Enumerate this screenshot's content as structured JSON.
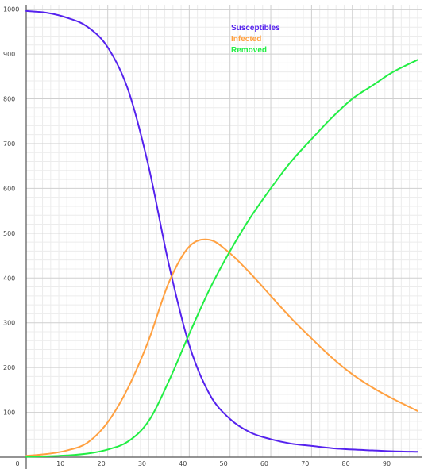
{
  "chart_data": {
    "type": "line",
    "title": "",
    "xlabel": "",
    "ylabel": "",
    "xlim": [
      0,
      97
    ],
    "ylim": [
      0,
      1010
    ],
    "x_ticks": [
      0,
      10,
      20,
      30,
      40,
      50,
      60,
      70,
      80,
      90
    ],
    "y_ticks": [
      0,
      100,
      200,
      300,
      400,
      500,
      600,
      700,
      800,
      900,
      1000
    ],
    "x_tick_labels": [
      "0",
      "10",
      "20",
      "30",
      "40",
      "50",
      "60",
      "70",
      "80",
      "90"
    ],
    "y_tick_labels": [
      "0",
      "100",
      "200",
      "300",
      "400",
      "500",
      "600",
      "700",
      "800",
      "900",
      "1000"
    ],
    "grid": true,
    "legend_position": "top-center",
    "x": [
      0,
      5,
      10,
      15,
      20,
      25,
      30,
      35,
      40,
      45,
      50,
      55,
      60,
      65,
      70,
      75,
      80,
      85,
      90,
      96
    ],
    "series": [
      {
        "name": "Susceptibles",
        "color": "#5522ee",
        "values": [
          996,
          992,
          981,
          961,
          915,
          820,
          650,
          430,
          250,
          140,
          85,
          55,
          40,
          30,
          25,
          20,
          17,
          15,
          13,
          12
        ]
      },
      {
        "name": "Infected",
        "color": "#ffa040",
        "values": [
          3,
          7,
          15,
          32,
          78,
          155,
          260,
          390,
          470,
          485,
          455,
          410,
          360,
          310,
          265,
          222,
          185,
          155,
          130,
          103
        ]
      },
      {
        "name": "Removed",
        "color": "#22ee44",
        "values": [
          1,
          2,
          4,
          8,
          17,
          35,
          80,
          170,
          275,
          375,
          460,
          535,
          600,
          660,
          710,
          758,
          800,
          830,
          860,
          887
        ]
      }
    ]
  }
}
